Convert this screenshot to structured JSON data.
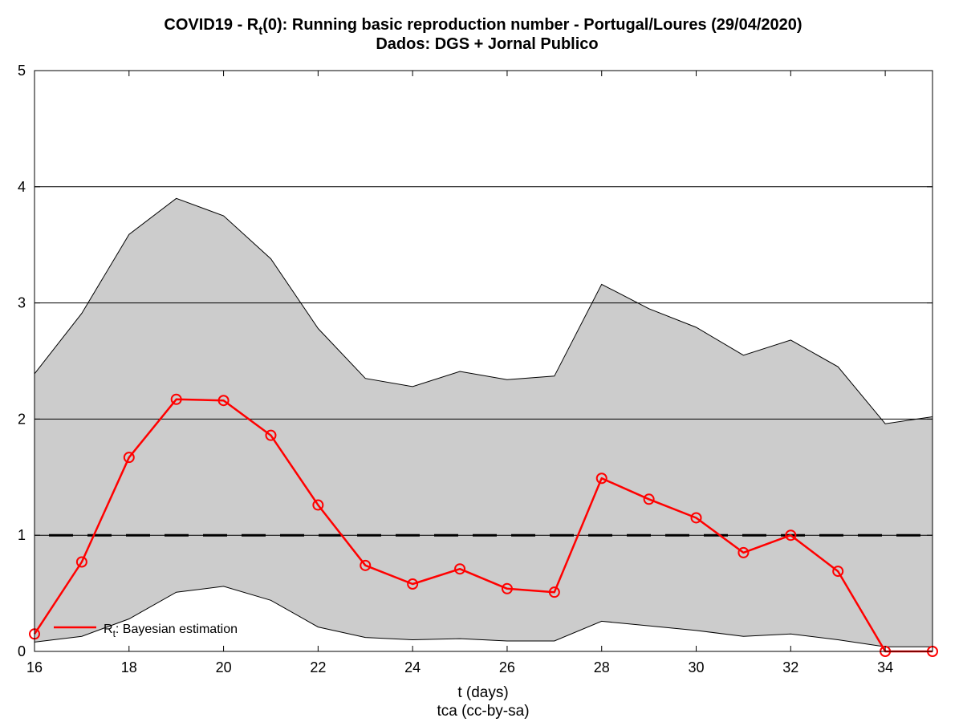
{
  "title": {
    "prefix": "COVID19 - R",
    "sub": "t",
    "suffix": "(0): Running basic reproduction number - Portugal/Loures (29/04/2020)",
    "line2": "Dados: DGS + Jornal Publico"
  },
  "chart_data": {
    "type": "line",
    "xlabel": "t (days)",
    "credit": "tca (cc-by-sa)",
    "xlim": [
      16,
      35
    ],
    "ylim": [
      0,
      5
    ],
    "x_ticks": [
      "16",
      "18",
      "20",
      "22",
      "24",
      "26",
      "28",
      "30",
      "32",
      "34"
    ],
    "y_ticks": [
      "0",
      "1",
      "2",
      "3",
      "4",
      "5"
    ],
    "grid": "horizontal",
    "x": [
      16,
      17,
      18,
      19,
      20,
      21,
      22,
      23,
      24,
      25,
      26,
      27,
      28,
      29,
      30,
      31,
      32,
      33,
      34,
      35
    ],
    "series": [
      {
        "name": "R",
        "name_sub": "t",
        "name_suffix": ": Bayesian estimation",
        "color": "#ff0000",
        "marker": "circle",
        "values": [
          0.15,
          0.77,
          1.67,
          2.17,
          2.16,
          1.86,
          1.26,
          0.74,
          0.58,
          0.71,
          0.54,
          0.51,
          1.49,
          1.31,
          1.15,
          0.85,
          1.0,
          0.69,
          0.0,
          0.0
        ]
      }
    ],
    "band": {
      "color": "#cccccc",
      "lower": [
        0.08,
        0.13,
        0.28,
        0.51,
        0.56,
        0.44,
        0.21,
        0.12,
        0.1,
        0.11,
        0.09,
        0.09,
        0.26,
        0.22,
        0.18,
        0.13,
        0.15,
        0.1,
        0.04,
        0.04
      ],
      "upper": [
        2.39,
        2.91,
        3.59,
        3.9,
        3.75,
        3.38,
        2.78,
        2.35,
        2.28,
        2.41,
        2.34,
        2.37,
        3.16,
        2.95,
        2.79,
        2.55,
        2.68,
        2.45,
        1.96,
        2.02
      ]
    },
    "reference_line": {
      "y": 1,
      "style": "dashed",
      "color": "#000000"
    },
    "legend_position": "bottom-left"
  }
}
